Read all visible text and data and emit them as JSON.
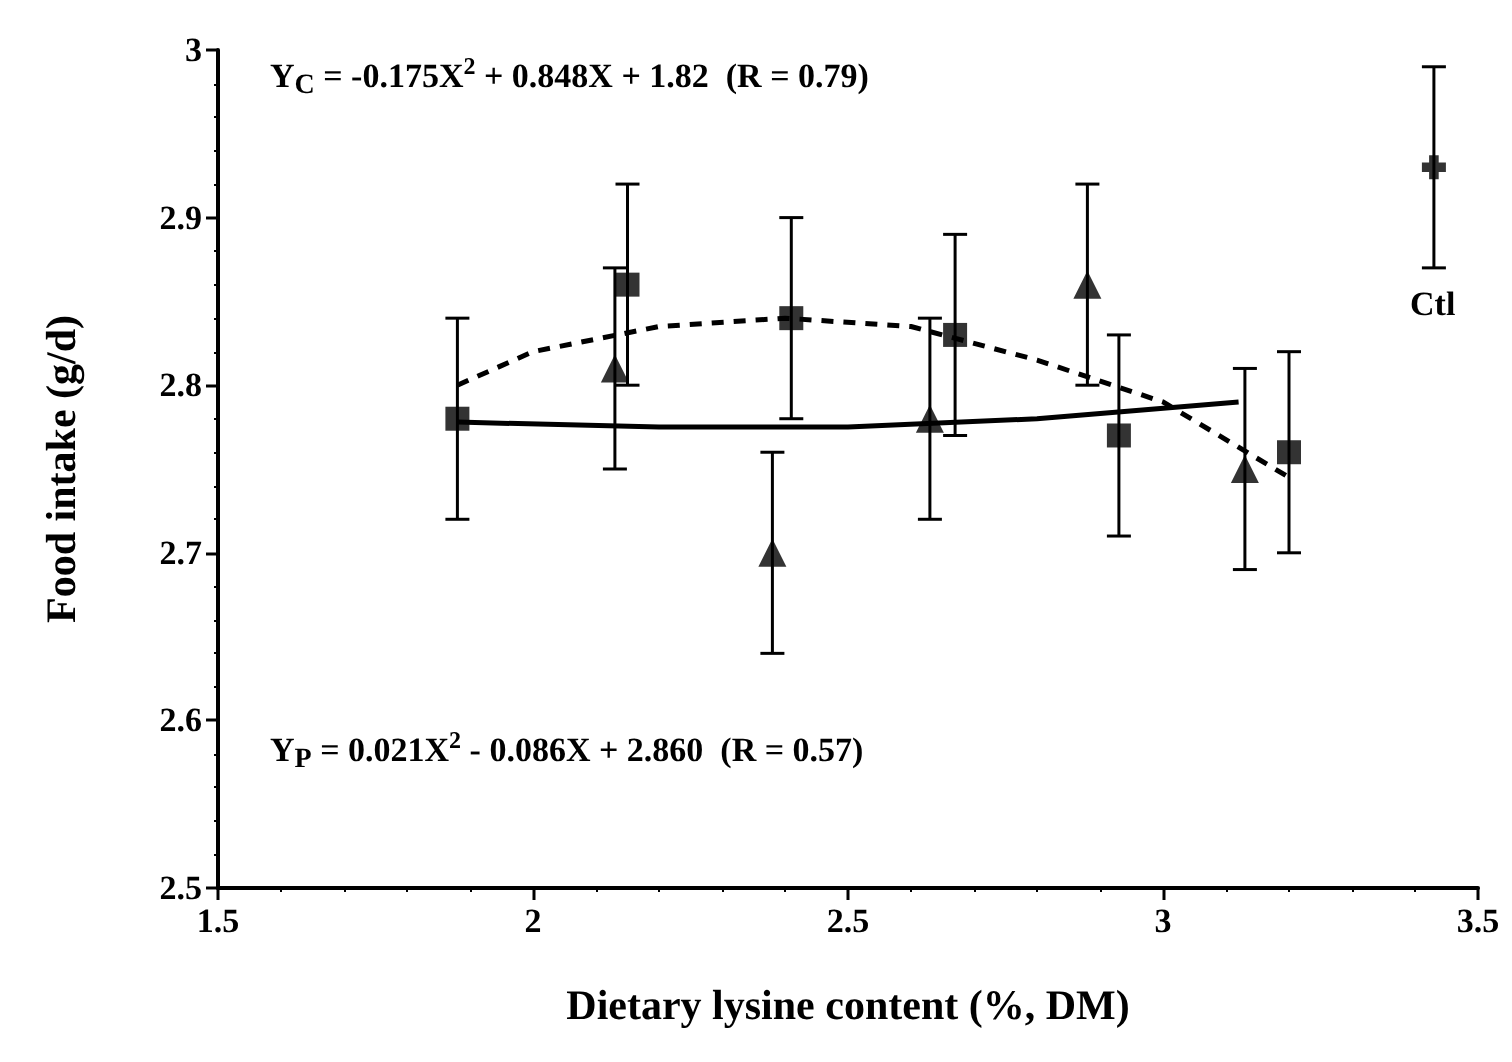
{
  "chart_data": {
    "type": "scatter",
    "xlabel": "Dietary lysine content (%, DM)",
    "ylabel": "Food intake (g/d)",
    "xlim": [
      1.5,
      3.5
    ],
    "xticks": [
      1.5,
      2,
      2.5,
      3,
      3.5
    ],
    "ylim": [
      2.5,
      3
    ],
    "yticks": [
      2.5,
      2.6,
      2.7,
      2.8,
      2.9,
      3
    ],
    "grid": false,
    "series": [
      {
        "marker": "square",
        "color": "#000000",
        "x": [
          1.88,
          2.15,
          2.41,
          2.67,
          2.93,
          3.2
        ],
        "values": [
          2.78,
          2.86,
          2.84,
          2.83,
          2.77,
          2.76
        ],
        "errors": [
          0.06,
          0.06,
          0.06,
          0.06,
          0.06,
          0.06
        ]
      },
      {
        "marker": "triangle",
        "color": "#000000",
        "x": [
          2.13,
          2.38,
          2.63,
          2.88,
          3.13
        ],
        "values": [
          2.81,
          2.7,
          2.78,
          2.86,
          2.75
        ],
        "errors": [
          0.06,
          0.06,
          0.06,
          0.06,
          0.06
        ]
      },
      {
        "marker": "cross",
        "color": "#000000",
        "x": [
          3.43
        ],
        "values": [
          2.93
        ],
        "errors": [
          0.06
        ]
      },
      {
        "type": "line",
        "marker": "none",
        "line_style": "dashed",
        "color": "#000000",
        "x": [
          1.88,
          2.0,
          2.2,
          2.4,
          2.6,
          2.8,
          3.0,
          3.2
        ],
        "values": [
          2.8,
          2.82,
          2.835,
          2.84,
          2.835,
          2.815,
          2.79,
          2.745
        ]
      },
      {
        "type": "line",
        "marker": "none",
        "line_style": "solid",
        "color": "#000000",
        "x": [
          1.88,
          2.2,
          2.5,
          2.8,
          3.12
        ],
        "values": [
          2.778,
          2.775,
          2.775,
          2.78,
          2.79
        ]
      }
    ],
    "annotations": [
      "Y$_{C}$ = -0.175X$^{2}$ + 0.848X + 1.82  (R = 0.79)",
      "Y$_{P}$ = 0.021X$^{2}$ - 0.086X + 2.860  (R = 0.57)",
      "Ctl"
    ]
  }
}
